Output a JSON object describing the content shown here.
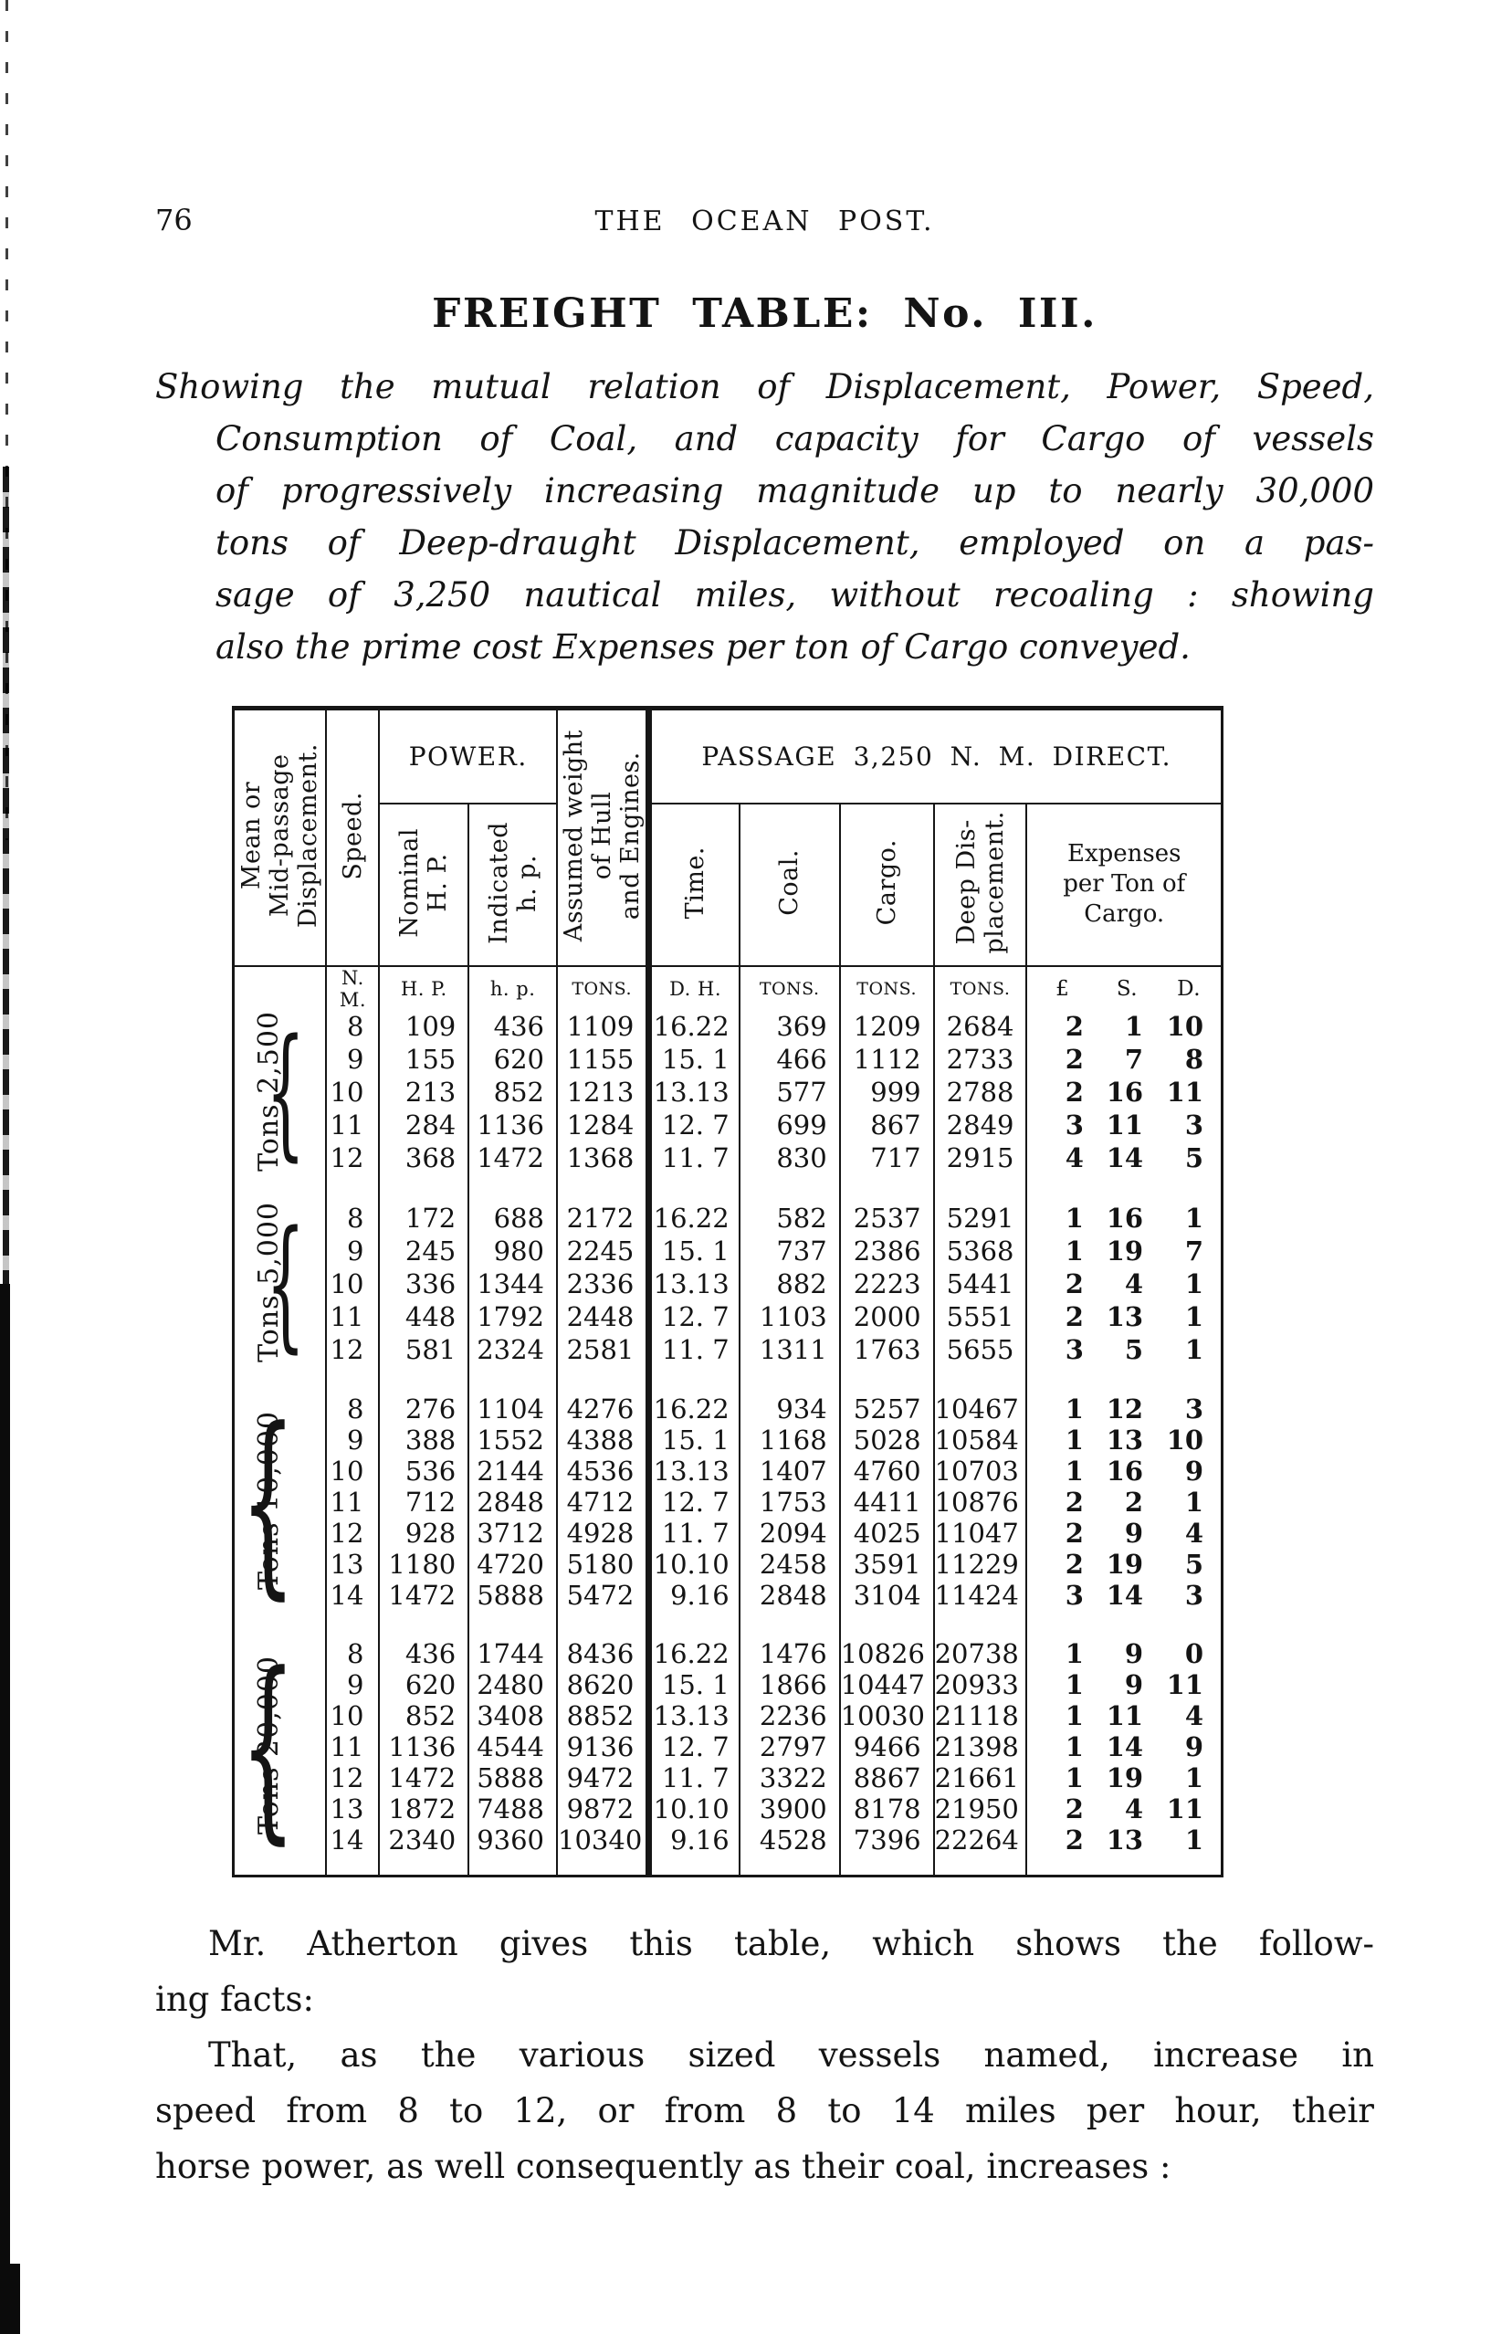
{
  "page": {
    "number": "76",
    "running_head": "THE OCEAN POST."
  },
  "title": "FREIGHT TABLE: No. III.",
  "subtitle_lines": [
    "Showing the mutual relation of Displacement, Power, Speed,",
    "Consumption of Coal, and capacity for Cargo of vessels",
    "of progressively increasing magnitude up to nearly 30,000",
    "tons of Deep-draught Displacement, employed on a pas-",
    "sage of 3,250 nautical miles, without recoaling : showing",
    "also the prime cost Expenses per ton of Cargo conveyed."
  ],
  "table": {
    "col_headers": {
      "displacement": "Mean or\nMid-passage\nDisplacement.",
      "speed": "Speed.",
      "power_group": "POWER.",
      "nominal": "Nominal\nH. P.",
      "indicated": "Indicated\nh. p.",
      "assumed_weight": "Assumed weight\nof Hull\nand Engines.",
      "passage_group": "PASSAGE 3,250 N. M. DIRECT.",
      "time": "Time.",
      "coal": "Coal.",
      "cargo": "Cargo.",
      "deep_displacement": "Deep Dis-\nplacement.",
      "expenses": "Expenses\nper Ton of\nCargo."
    },
    "units": {
      "speed": "N. M.",
      "nominal": "H. P.",
      "indicated": "h. p.",
      "assumed": "TONS.",
      "time": "D. H.",
      "coal": "TONS.",
      "cargo": "TONS.",
      "deep": "TONS.",
      "pounds": "£",
      "shillings": "S.",
      "pence": "D."
    },
    "brace_glyph": "{",
    "groups": [
      {
        "label": "Tons 2,500",
        "rows": [
          [
            "8",
            "109",
            "436",
            "1109",
            "16.22",
            "369",
            "1209",
            "2684",
            "2",
            "1",
            "10"
          ],
          [
            "9",
            "155",
            "620",
            "1155",
            "15. 1",
            "466",
            "1112",
            "2733",
            "2",
            "7",
            "8"
          ],
          [
            "10",
            "213",
            "852",
            "1213",
            "13.13",
            "577",
            "999",
            "2788",
            "2",
            "16",
            "11"
          ],
          [
            "11",
            "284",
            "1136",
            "1284",
            "12. 7",
            "699",
            "867",
            "2849",
            "3",
            "11",
            "3"
          ],
          [
            "12",
            "368",
            "1472",
            "1368",
            "11. 7",
            "830",
            "717",
            "2915",
            "4",
            "14",
            "5"
          ]
        ]
      },
      {
        "label": "Tons 5,000",
        "rows": [
          [
            "8",
            "172",
            "688",
            "2172",
            "16.22",
            "582",
            "2537",
            "5291",
            "1",
            "16",
            "1"
          ],
          [
            "9",
            "245",
            "980",
            "2245",
            "15. 1",
            "737",
            "2386",
            "5368",
            "1",
            "19",
            "7"
          ],
          [
            "10",
            "336",
            "1344",
            "2336",
            "13.13",
            "882",
            "2223",
            "5441",
            "2",
            "4",
            "1"
          ],
          [
            "11",
            "448",
            "1792",
            "2448",
            "12. 7",
            "1103",
            "2000",
            "5551",
            "2",
            "13",
            "1"
          ],
          [
            "12",
            "581",
            "2324",
            "2581",
            "11. 7",
            "1311",
            "1763",
            "5655",
            "3",
            "5",
            "1"
          ]
        ]
      },
      {
        "label": "Tons 10,000",
        "rows": [
          [
            "8",
            "276",
            "1104",
            "4276",
            "16.22",
            "934",
            "5257",
            "10467",
            "1",
            "12",
            "3"
          ],
          [
            "9",
            "388",
            "1552",
            "4388",
            "15. 1",
            "1168",
            "5028",
            "10584",
            "1",
            "13",
            "10"
          ],
          [
            "10",
            "536",
            "2144",
            "4536",
            "13.13",
            "1407",
            "4760",
            "10703",
            "1",
            "16",
            "9"
          ],
          [
            "11",
            "712",
            "2848",
            "4712",
            "12. 7",
            "1753",
            "4411",
            "10876",
            "2",
            "2",
            "1"
          ],
          [
            "12",
            "928",
            "3712",
            "4928",
            "11. 7",
            "2094",
            "4025",
            "11047",
            "2",
            "9",
            "4"
          ],
          [
            "13",
            "1180",
            "4720",
            "5180",
            "10.10",
            "2458",
            "3591",
            "11229",
            "2",
            "19",
            "5"
          ],
          [
            "14",
            "1472",
            "5888",
            "5472",
            "9.16",
            "2848",
            "3104",
            "11424",
            "3",
            "14",
            "3"
          ]
        ]
      },
      {
        "label": "Tons 20,000",
        "rows": [
          [
            "8",
            "436",
            "1744",
            "8436",
            "16.22",
            "1476",
            "10826",
            "20738",
            "1",
            "9",
            "0"
          ],
          [
            "9",
            "620",
            "2480",
            "8620",
            "15. 1",
            "1866",
            "10447",
            "20933",
            "1",
            "9",
            "11"
          ],
          [
            "10",
            "852",
            "3408",
            "8852",
            "13.13",
            "2236",
            "10030",
            "21118",
            "1",
            "11",
            "4"
          ],
          [
            "11",
            "1136",
            "4544",
            "9136",
            "12. 7",
            "2797",
            "9466",
            "21398",
            "1",
            "14",
            "9"
          ],
          [
            "12",
            "1472",
            "5888",
            "9472",
            "11. 7",
            "3322",
            "8867",
            "21661",
            "1",
            "19",
            "1"
          ],
          [
            "13",
            "1872",
            "7488",
            "9872",
            "10.10",
            "3900",
            "8178",
            "21950",
            "2",
            "4",
            "11"
          ],
          [
            "14",
            "2340",
            "9360",
            "10340",
            "9.16",
            "4528",
            "7396",
            "22264",
            "2",
            "13",
            "1"
          ]
        ]
      }
    ]
  },
  "paragraphs": [
    {
      "lines": [
        "Mr. Atherton gives this table, which shows the follow-",
        "ing facts:"
      ]
    },
    {
      "lines": [
        "That, as the various sized vessels named, increase in",
        "speed from 8 to 12, or from 8 to 14 miles per hour, their",
        "horse power, as well consequently as their coal, increases :"
      ]
    }
  ]
}
